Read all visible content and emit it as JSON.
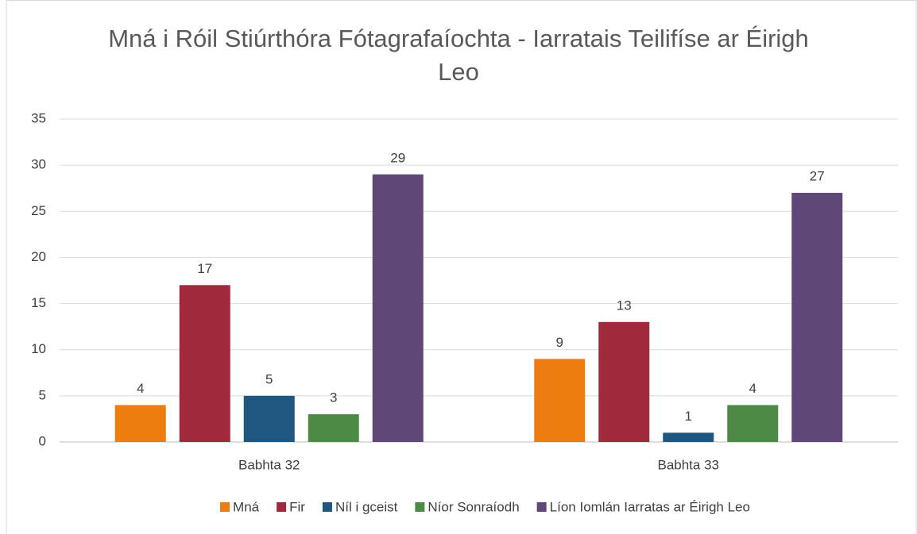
{
  "chart_data": {
    "type": "bar",
    "title": "Mná i Róil Stiúrthóra Fótagrafaíochta - Iarratais Teilifíse ar Éirigh Leo",
    "categories": [
      "Babhta 32",
      "Babhta 33"
    ],
    "series": [
      {
        "name": "Mná",
        "color": "#ED7D0F",
        "values": [
          4,
          9
        ]
      },
      {
        "name": "Fir",
        "color": "#9E2A3B",
        "values": [
          17,
          13
        ]
      },
      {
        "name": "Níl i gceist",
        "color": "#1F5780",
        "values": [
          5,
          1
        ]
      },
      {
        "name": "Níor Sonraíodh",
        "color": "#4D8A45",
        "values": [
          3,
          4
        ]
      },
      {
        "name": "Líon Iomlán Iarratas ar Éirigh Leo",
        "color": "#5F4777",
        "values": [
          29,
          27
        ]
      }
    ],
    "ylim": [
      0,
      35
    ],
    "yticks": [
      0,
      5,
      10,
      15,
      20,
      25,
      30,
      35
    ],
    "grid": true,
    "legend": "bottom"
  }
}
